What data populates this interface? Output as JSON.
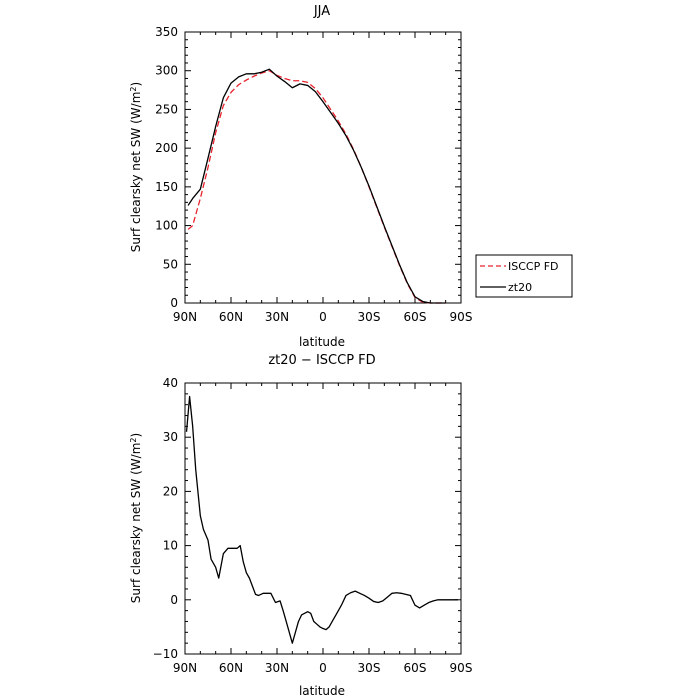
{
  "chart_data": [
    {
      "type": "line",
      "title": "JJA",
      "xlabel": "latitude",
      "ylabel": "Surf clearsky net SW (W/m²)",
      "ylabel_prefix": "Surf clearsky net SW (W/m",
      "ylabel_sup": "2",
      "ylabel_suffix": ")",
      "xlim": [
        90,
        -90
      ],
      "ylim": [
        0,
        350
      ],
      "xticks": [
        90,
        60,
        30,
        0,
        -30,
        -60,
        -90
      ],
      "xtick_labels": [
        "90N",
        "60N",
        "30N",
        "0",
        "30S",
        "60S",
        "90S"
      ],
      "yticks": [
        0,
        50,
        100,
        150,
        200,
        250,
        300,
        350
      ],
      "ytick_labels": [
        "0",
        "50",
        "100",
        "150",
        "200",
        "250",
        "300",
        "350"
      ],
      "legend": "right",
      "series": [
        {
          "name": "ISCCP FD",
          "color": "#e8232f",
          "dash": true,
          "x": [
            88,
            85,
            80,
            75,
            70,
            65,
            60,
            55,
            50,
            45,
            40,
            35,
            30,
            25,
            20,
            15,
            10,
            5,
            0,
            -5,
            -10,
            -15,
            -20,
            -25,
            -30,
            -35,
            -40,
            -45,
            -50,
            -55,
            -60,
            -65,
            -70,
            -75,
            -80
          ],
          "y": [
            95,
            100,
            135,
            175,
            220,
            255,
            272,
            282,
            288,
            293,
            297,
            300,
            294,
            290,
            287,
            287,
            285,
            277,
            265,
            250,
            235,
            218,
            198,
            175,
            150,
            124,
            98,
            73,
            48,
            25,
            7,
            1,
            0,
            0,
            0
          ]
        },
        {
          "name": "zt20",
          "color": "#000000",
          "dash": false,
          "x": [
            88,
            85,
            80,
            75,
            70,
            65,
            60,
            55,
            50,
            45,
            40,
            35,
            30,
            25,
            20,
            15,
            10,
            5,
            0,
            -5,
            -10,
            -15,
            -20,
            -25,
            -30,
            -35,
            -40,
            -45,
            -50,
            -55,
            -60,
            -65,
            -70,
            -75,
            -80
          ],
          "y": [
            126,
            135,
            147,
            187,
            228,
            265,
            284,
            292,
            296,
            296,
            298,
            302,
            293,
            286,
            278,
            283,
            281,
            273,
            260,
            246,
            232,
            216,
            197,
            175,
            151,
            125,
            99,
            74,
            49,
            26,
            8,
            2,
            0,
            0,
            0
          ]
        }
      ]
    },
    {
      "type": "line",
      "title": "zt20 − ISCCP FD",
      "xlabel": "latitude",
      "ylabel": "Surf clearsky net SW (W/m²)",
      "ylabel_prefix": "Surf clearsky net SW (W/m",
      "ylabel_sup": "2",
      "ylabel_suffix": ")",
      "xlim": [
        90,
        -90
      ],
      "ylim": [
        -10,
        40
      ],
      "xticks": [
        90,
        60,
        30,
        0,
        -30,
        -60,
        -90
      ],
      "xtick_labels": [
        "90N",
        "60N",
        "30N",
        "0",
        "30S",
        "60S",
        "90S"
      ],
      "yticks": [
        -10,
        0,
        10,
        20,
        30,
        40
      ],
      "ytick_labels": [
        "−10",
        "0",
        "10",
        "20",
        "30",
        "40"
      ],
      "series": [
        {
          "color": "#000000",
          "dash": false,
          "x": [
            89,
            87,
            85,
            83,
            80,
            78,
            75,
            73,
            70,
            68,
            65,
            62,
            59,
            56,
            54,
            52,
            50,
            48,
            46,
            44,
            42,
            39,
            36,
            34,
            31,
            28,
            26,
            24,
            22,
            20,
            18,
            16,
            14,
            12,
            10,
            8,
            6,
            4,
            2,
            0,
            -2,
            -4,
            -6,
            -8,
            -10,
            -12,
            -15,
            -18,
            -21,
            -24,
            -27,
            -30,
            -33,
            -36,
            -39,
            -42,
            -45,
            -48,
            -51,
            -54,
            -57,
            -60,
            -63,
            -66,
            -69,
            -72,
            -75,
            -80,
            -85,
            -88
          ],
          "y": [
            31,
            37.5,
            32,
            24,
            15.5,
            13,
            11,
            7.5,
            6,
            4,
            8.5,
            9.5,
            9.5,
            9.5,
            10,
            7,
            5,
            4,
            2.5,
            1,
            0.8,
            1.2,
            1.2,
            1.2,
            -0.5,
            -0.2,
            -2,
            -4,
            -6,
            -8,
            -6,
            -4,
            -2.8,
            -2.5,
            -2.2,
            -2.5,
            -4,
            -4.5,
            -5,
            -5.3,
            -5.5,
            -5,
            -4,
            -3,
            -2,
            -1,
            0.8,
            1.3,
            1.6,
            1.2,
            0.8,
            0.3,
            -0.3,
            -0.5,
            -0.2,
            0.5,
            1.2,
            1.3,
            1.2,
            1.0,
            0.8,
            -1,
            -1.5,
            -1,
            -0.5,
            -0.2,
            0,
            0,
            0,
            0
          ]
        }
      ]
    }
  ]
}
